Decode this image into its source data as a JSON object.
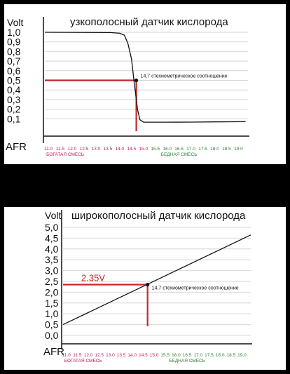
{
  "chart_data": [
    {
      "type": "line",
      "title": "узкополосный датчик кислорода",
      "ylabel": "Volt",
      "xlabel": "AFR",
      "ylim": [
        0.0,
        1.0
      ],
      "y_ticks": [
        "1,0",
        "0,9",
        "0,8",
        "0,7",
        "0,6",
        "0,5",
        "0,4",
        "0,3",
        "0,2",
        "0,1"
      ],
      "x_ticks": [
        "11.0",
        "11.5",
        "12.0",
        "12.5",
        "13.0",
        "13.5",
        "14.0",
        "14.5",
        "15.0",
        "15.5",
        "16.0",
        "16.5",
        "17.0",
        "17.5",
        "18.0",
        "18.5",
        "19.0"
      ],
      "x_tick_colors": [
        "#c2185b",
        "#c2185b",
        "#c2185b",
        "#c2185b",
        "#c2185b",
        "#c2185b",
        "#c2185b",
        "#c2185b",
        "#c2185b",
        "#2e7d32",
        "#2e7d32",
        "#2e7d32",
        "#2e7d32",
        "#2e7d32",
        "#2e7d32",
        "#2e7d32",
        "#2e7d32"
      ],
      "rich_label": "БОГАТАЯ СМЕСЬ",
      "lean_label": "БЕДНАЯ СМЕСЬ",
      "rich_color": "#c2185b",
      "lean_color": "#2e7d32",
      "series": [
        {
          "x": [
            10.85,
            13.6,
            14.0,
            14.2,
            14.35,
            14.5,
            14.6,
            14.75,
            14.85,
            15.0,
            16.0,
            17.0,
            18.0,
            19.3
          ],
          "y": [
            1.0,
            0.997,
            0.99,
            0.97,
            0.88,
            0.72,
            0.5,
            0.2,
            0.09,
            0.065,
            0.065,
            0.066,
            0.068,
            0.07
          ]
        }
      ],
      "marker": {
        "x": 14.7,
        "y": 0.5,
        "label": "14,7 стехиометрическое соотношение"
      },
      "marker_color": "#c62828"
    },
    {
      "type": "line",
      "title": "широкополосный датчик кислорода",
      "ylabel": "Volt",
      "xlabel": "AFR",
      "ylim": [
        0.0,
        5.0
      ],
      "y_ticks": [
        "5,0",
        "4,5",
        "4,0",
        "3,5",
        "3,0",
        "2,5",
        "2,0",
        "1,5",
        "1,0",
        "0,5",
        "0,0"
      ],
      "x_ticks": [
        "11.0",
        "11.5",
        "12.0",
        "12.5",
        "13.0",
        "13.5",
        "14.0",
        "14.5",
        "15.0",
        "15.5",
        "16.0",
        "16.5",
        "17.0",
        "17.5",
        "18.0",
        "18.5",
        "19.0"
      ],
      "x_tick_colors": [
        "#c2185b",
        "#c2185b",
        "#c2185b",
        "#c2185b",
        "#c2185b",
        "#c2185b",
        "#c2185b",
        "#c2185b",
        "#c2185b",
        "#2e7d32",
        "#2e7d32",
        "#2e7d32",
        "#2e7d32",
        "#2e7d32",
        "#2e7d32",
        "#2e7d32",
        "#2e7d32"
      ],
      "rich_label": "БОГАТАЯ СМЕСЬ",
      "lean_label": "БЕДНАЯ СМЕСЬ",
      "rich_color": "#c2185b",
      "lean_color": "#2e7d32",
      "series": [
        {
          "x": [
            10.85,
            19.4
          ],
          "y": [
            0.5,
            4.65
          ]
        }
      ],
      "marker": {
        "x": 14.7,
        "y": 2.35,
        "label": "14,7 стехиометрическое соотношение"
      },
      "marker_value_label": "2.35V",
      "marker_color": "#c62828"
    }
  ]
}
